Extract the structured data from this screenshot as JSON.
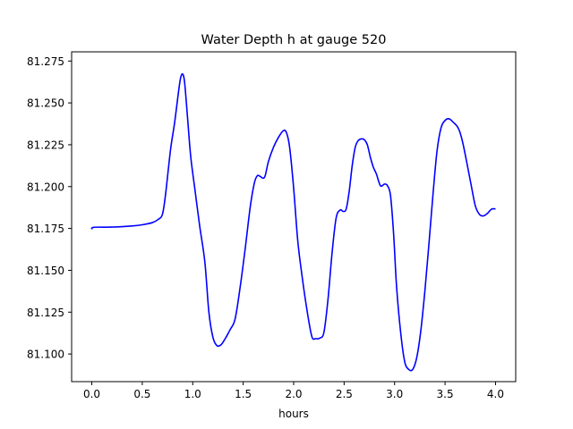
{
  "chart_data": {
    "type": "line",
    "title": "Water Depth h at gauge 520",
    "xlabel": "hours",
    "ylabel": "",
    "xlim": [
      -0.2,
      4.2
    ],
    "ylim": [
      81.0835,
      81.2805
    ],
    "xticks": [
      0.0,
      0.5,
      1.0,
      1.5,
      2.0,
      2.5,
      3.0,
      3.5,
      4.0
    ],
    "xtick_labels": [
      "0.0",
      "0.5",
      "1.0",
      "1.5",
      "2.0",
      "2.5",
      "3.0",
      "3.5",
      "4.0"
    ],
    "yticks": [
      81.1,
      81.125,
      81.15,
      81.175,
      81.2,
      81.225,
      81.25,
      81.275
    ],
    "ytick_labels": [
      "81.100",
      "81.125",
      "81.150",
      "81.175",
      "81.200",
      "81.225",
      "81.250",
      "81.275"
    ],
    "grid": false,
    "series": [
      {
        "color": "#0000ff",
        "x": [
          0.0,
          0.02,
          0.2,
          0.4,
          0.5,
          0.6,
          0.66,
          0.7,
          0.73,
          0.78,
          0.82,
          0.86,
          0.88,
          0.9,
          0.92,
          0.95,
          0.98,
          1.02,
          1.07,
          1.12,
          1.16,
          1.2,
          1.24,
          1.28,
          1.32,
          1.37,
          1.42,
          1.47,
          1.52,
          1.57,
          1.61,
          1.64,
          1.67,
          1.7,
          1.72,
          1.75,
          1.8,
          1.85,
          1.9,
          1.93,
          1.96,
          2.0,
          2.04,
          2.08,
          2.13,
          2.18,
          2.22,
          2.26,
          2.3,
          2.34,
          2.38,
          2.42,
          2.46,
          2.49,
          2.52,
          2.55,
          2.58,
          2.61,
          2.64,
          2.67,
          2.7,
          2.73,
          2.76,
          2.79,
          2.82,
          2.86,
          2.9,
          2.93,
          2.96,
          2.99,
          3.02,
          3.06,
          3.1,
          3.14,
          3.18,
          3.22,
          3.26,
          3.3,
          3.34,
          3.38,
          3.42,
          3.46,
          3.5,
          3.54,
          3.58,
          3.62,
          3.65,
          3.68,
          3.72,
          3.76,
          3.8,
          3.84,
          3.88,
          3.92,
          3.96,
          4.0
        ],
        "y": [
          81.1745,
          81.1757,
          81.1758,
          81.1765,
          81.1772,
          81.1785,
          81.1805,
          81.1835,
          81.195,
          81.222,
          81.238,
          81.257,
          81.265,
          81.2672,
          81.262,
          81.24,
          81.218,
          81.199,
          81.176,
          81.155,
          81.125,
          81.11,
          81.105,
          81.1055,
          81.109,
          81.1145,
          81.121,
          81.14,
          81.163,
          81.188,
          81.202,
          81.2065,
          81.206,
          81.205,
          81.207,
          81.215,
          81.2235,
          81.2295,
          81.2335,
          81.232,
          81.2235,
          81.199,
          81.168,
          81.148,
          81.127,
          81.1105,
          81.1092,
          81.1095,
          81.113,
          81.1325,
          81.16,
          81.181,
          81.186,
          81.1852,
          81.1865,
          81.197,
          81.2125,
          81.2235,
          81.2275,
          81.2285,
          81.228,
          81.225,
          81.2175,
          81.2115,
          81.2075,
          81.2005,
          81.2015,
          81.2005,
          81.1945,
          81.172,
          81.14,
          81.113,
          81.0955,
          81.0908,
          81.0908,
          81.098,
          81.114,
          81.1375,
          81.1655,
          81.195,
          81.221,
          81.235,
          81.2395,
          81.2405,
          81.2385,
          81.236,
          81.232,
          81.225,
          81.213,
          81.2005,
          81.1885,
          81.1835,
          81.1825,
          81.184,
          81.1865,
          81.1867
        ]
      }
    ]
  }
}
